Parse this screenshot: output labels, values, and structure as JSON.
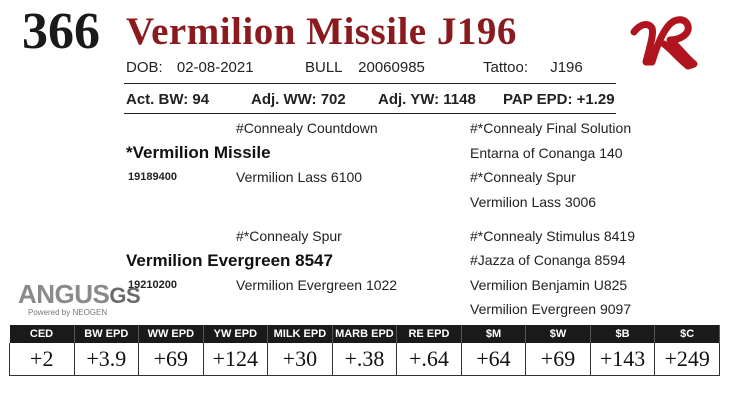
{
  "lot_number": "366",
  "animal_name": "Vermilion Missile J196",
  "dob_label": "DOB:",
  "dob": "02-08-2021",
  "sex": "BULL",
  "registration": "20060985",
  "tattoo_label": "Tattoo:",
  "tattoo": "J196",
  "act_bw": "Act. BW: 94",
  "adj_ww": "Adj. WW: 702",
  "adj_yw": "Adj. YW: 1148",
  "pap_epd": "PAP EPD: +1.29",
  "pedigree": {
    "sire": "*Vermilion Missile",
    "sire_reg": "19189400",
    "sire_sire": "#Connealy Countdown",
    "sire_dam": "Vermilion Lass 6100",
    "sss": "#*Connealy Final Solution",
    "ssd": "Entarna of Conanga 140",
    "sds": "#*Connealy Spur",
    "sdd": "Vermilion Lass 3006",
    "dam": "Vermilion Evergreen 8547",
    "dam_reg": "19210200",
    "dam_sire": "#*Connealy Spur",
    "dam_dam": "Vermilion Evergreen 1022",
    "dss": "#*Connealy Stimulus 8419",
    "dsd": "#Jazza of Conanga 8594",
    "dds": "Vermilion Benjamin U825",
    "ddd": "Vermilion Evergreen 9097"
  },
  "logo": {
    "brand": "ANGUS",
    "suffix": "GS",
    "powered_by": "Powered by NEOGEN",
    "ranch_mark": "VR",
    "ranch_mark_color": "#b0141f"
  },
  "epd_headers": [
    "CED",
    "BW EPD",
    "WW EPD",
    "YW EPD",
    "MILK EPD",
    "MARB EPD",
    "RE EPD",
    "$M",
    "$W",
    "$B",
    "$C"
  ],
  "epd_values": [
    "+2",
    "+3.9",
    "+69",
    "+124",
    "+30",
    "+.38",
    "+.64",
    "+64",
    "+69",
    "+143",
    "+249"
  ],
  "colors": {
    "name": "#8b1a1f",
    "header_bg": "#1a1a1a"
  }
}
